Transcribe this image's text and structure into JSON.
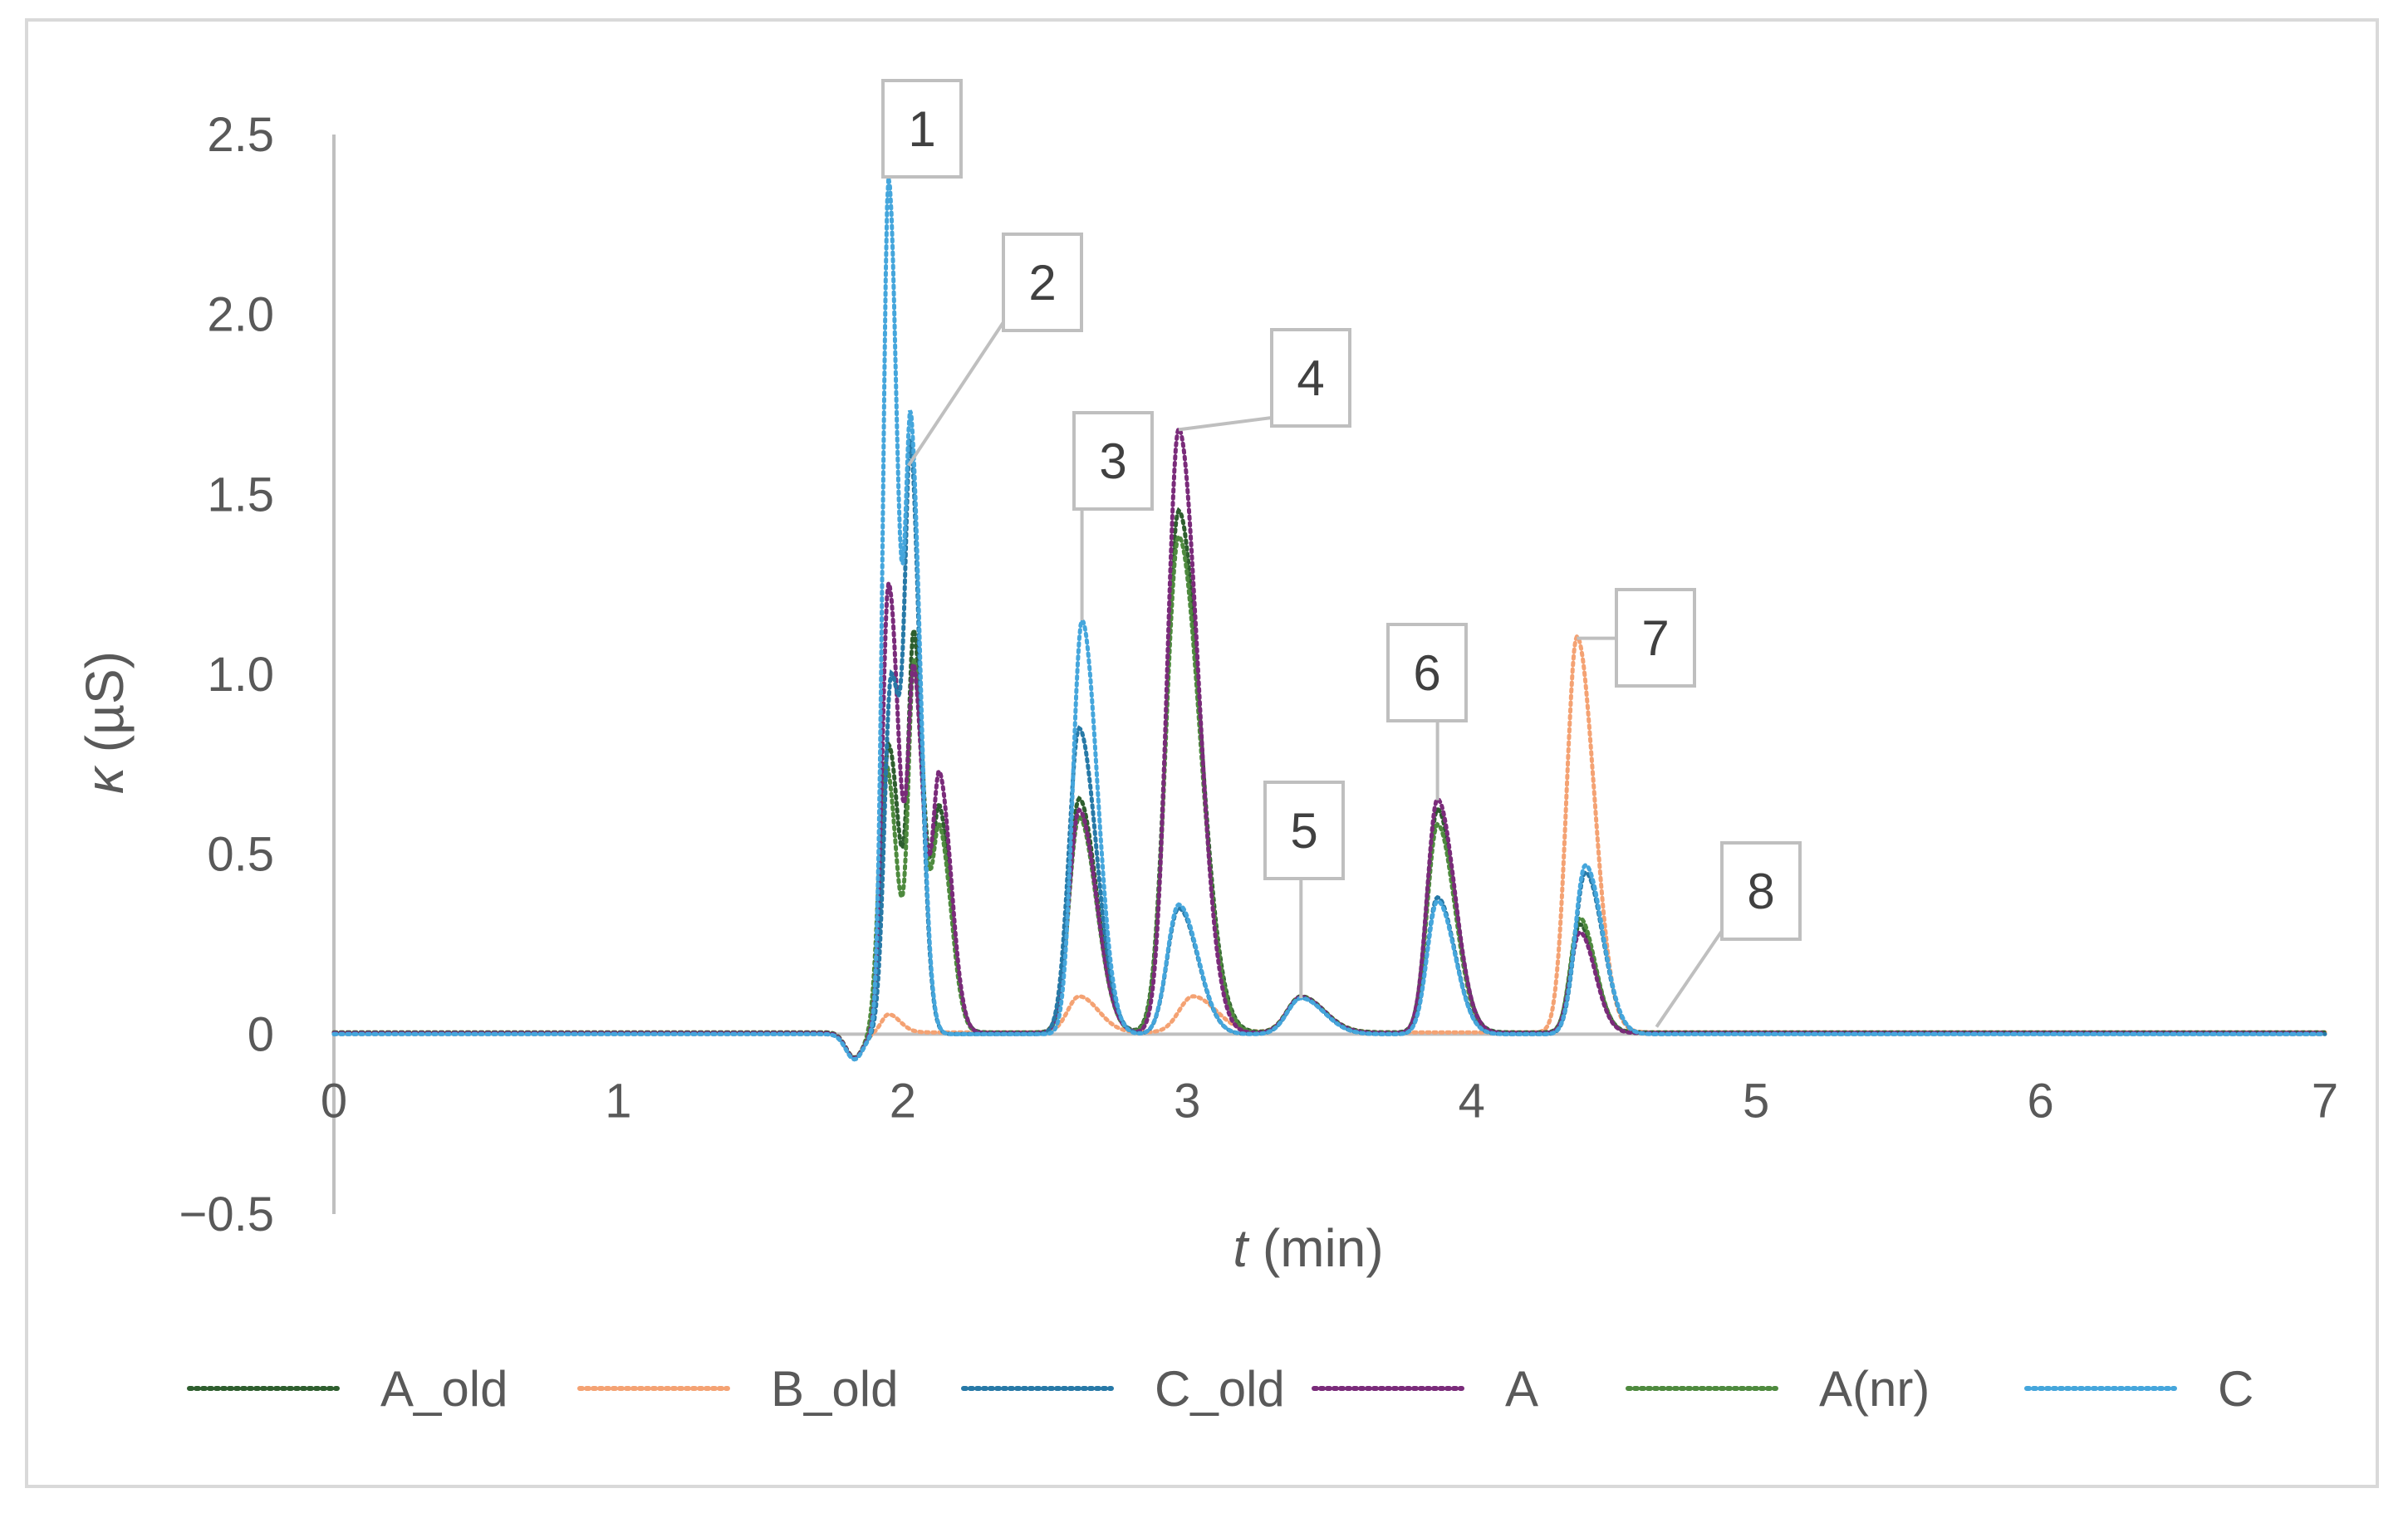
{
  "chart_data": {
    "type": "line",
    "xlabel": "t (min)",
    "ylabel": "κ (µS)",
    "x_axis": {
      "label_var": "t",
      "label_unit": " (min)",
      "min": 0,
      "max": 7,
      "ticks": [
        "0",
        "1",
        "2",
        "3",
        "4",
        "5",
        "6",
        "7"
      ]
    },
    "y_axis": {
      "label_var": "κ",
      "label_unit": " (µS)",
      "min": -0.5,
      "max": 2.5,
      "ticks": [
        "−0.5",
        "0",
        "0.5",
        "1.0",
        "1.5",
        "2.0",
        "2.5"
      ]
    },
    "grid": false,
    "legend_position": "bottom",
    "series": [
      {
        "name": "A_old",
        "color": "#2e5e2e",
        "baseline": 0.005,
        "peaks": [
          {
            "t": 1.95,
            "h": 0.8,
            "w": 0.03
          },
          {
            "t": 2.04,
            "h": 1.05,
            "w": 0.025
          },
          {
            "t": 2.13,
            "h": 0.6,
            "w": 0.03
          },
          {
            "t": 2.62,
            "h": 0.65,
            "w": 0.045
          },
          {
            "t": 2.97,
            "h": 1.45,
            "w": 0.055
          },
          {
            "t": 3.4,
            "h": 0.1,
            "w": 0.06
          },
          {
            "t": 3.88,
            "h": 0.62,
            "w": 0.045
          },
          {
            "t": 4.38,
            "h": 0.3,
            "w": 0.04
          }
        ]
      },
      {
        "name": "B_old",
        "color": "#f4a273",
        "baseline": 0.005,
        "peaks": [
          {
            "t": 1.95,
            "h": 0.05,
            "w": 0.03
          },
          {
            "t": 2.62,
            "h": 0.1,
            "w": 0.05
          },
          {
            "t": 3.02,
            "h": 0.1,
            "w": 0.06
          },
          {
            "t": 3.4,
            "h": 0.1,
            "w": 0.06
          },
          {
            "t": 4.37,
            "h": 1.1,
            "w": 0.045
          }
        ]
      },
      {
        "name": "C_old",
        "color": "#2779a7",
        "baseline": 0.0,
        "peaks": [
          {
            "t": 1.96,
            "h": 1.0,
            "w": 0.03
          },
          {
            "t": 2.03,
            "h": 1.42,
            "w": 0.025
          },
          {
            "t": 2.62,
            "h": 0.85,
            "w": 0.045
          },
          {
            "t": 2.97,
            "h": 0.35,
            "w": 0.05
          },
          {
            "t": 3.4,
            "h": 0.1,
            "w": 0.06
          },
          {
            "t": 3.88,
            "h": 0.38,
            "w": 0.045
          },
          {
            "t": 4.4,
            "h": 0.45,
            "w": 0.045
          }
        ]
      },
      {
        "name": "A",
        "color": "#7a2b7a",
        "baseline": 0.003,
        "peaks": [
          {
            "t": 1.95,
            "h": 1.25,
            "w": 0.028
          },
          {
            "t": 2.04,
            "h": 0.95,
            "w": 0.025
          },
          {
            "t": 2.13,
            "h": 0.7,
            "w": 0.03
          },
          {
            "t": 2.62,
            "h": 0.62,
            "w": 0.045
          },
          {
            "t": 2.97,
            "h": 1.68,
            "w": 0.05
          },
          {
            "t": 3.4,
            "h": 0.1,
            "w": 0.06
          },
          {
            "t": 3.88,
            "h": 0.65,
            "w": 0.045
          },
          {
            "t": 4.38,
            "h": 0.28,
            "w": 0.04
          }
        ]
      },
      {
        "name": "A(nr)",
        "color": "#4e8a3e",
        "baseline": 0.003,
        "peaks": [
          {
            "t": 1.94,
            "h": 0.75,
            "w": 0.03
          },
          {
            "t": 2.04,
            "h": 1.0,
            "w": 0.025
          },
          {
            "t": 2.13,
            "h": 0.55,
            "w": 0.03
          },
          {
            "t": 2.62,
            "h": 0.6,
            "w": 0.045
          },
          {
            "t": 2.97,
            "h": 1.38,
            "w": 0.055
          },
          {
            "t": 3.4,
            "h": 0.1,
            "w": 0.06
          },
          {
            "t": 3.88,
            "h": 0.58,
            "w": 0.045
          },
          {
            "t": 4.38,
            "h": 0.32,
            "w": 0.04
          }
        ]
      },
      {
        "name": "C",
        "color": "#45a6dc",
        "baseline": 0.0,
        "peaks": [
          {
            "t": 1.95,
            "h": 2.38,
            "w": 0.025
          },
          {
            "t": 2.03,
            "h": 1.58,
            "w": 0.025
          },
          {
            "t": 2.63,
            "h": 1.15,
            "w": 0.04
          },
          {
            "t": 2.97,
            "h": 0.36,
            "w": 0.05
          },
          {
            "t": 3.4,
            "h": 0.1,
            "w": 0.06
          },
          {
            "t": 3.88,
            "h": 0.37,
            "w": 0.045
          },
          {
            "t": 4.4,
            "h": 0.47,
            "w": 0.045
          }
        ]
      }
    ],
    "dip": {
      "t": 1.83,
      "h": -0.07,
      "w": 0.03
    },
    "annotations": [
      {
        "label": "1",
        "t": 1.95,
        "k": 2.38
      },
      {
        "label": "2",
        "t": 2.02,
        "k": 1.58
      },
      {
        "label": "3",
        "t": 2.63,
        "k": 1.15
      },
      {
        "label": "4",
        "t": 2.97,
        "k": 1.68
      },
      {
        "label": "5",
        "t": 3.4,
        "k": 0.1
      },
      {
        "label": "6",
        "t": 3.88,
        "k": 0.65
      },
      {
        "label": "7",
        "t": 4.37,
        "k": 1.1
      },
      {
        "label": "8",
        "t": 4.65,
        "k": 0.02
      }
    ]
  }
}
